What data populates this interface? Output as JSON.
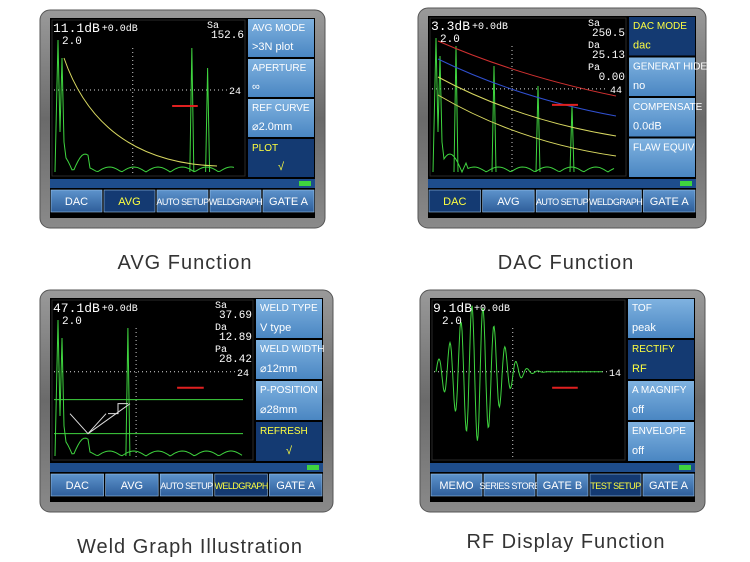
{
  "panels": [
    {
      "caption": "AVG Function",
      "gain": "11.1dB",
      "offset": "+0.0dB",
      "range": "2.0",
      "readouts": [
        {
          "label": "Sa",
          "value": "152.6"
        }
      ],
      "marker": "24",
      "menu": [
        {
          "label": "AVG MODE",
          "value": ">3N plot"
        },
        {
          "label": "APERTURE",
          "value": "∞"
        },
        {
          "label": "REF CURVE",
          "value": "⌀2.0mm"
        },
        {
          "label": "PLOT",
          "value": "√"
        }
      ],
      "selected_menu": 3,
      "buttons": [
        "DAC",
        "AVG",
        "AUTO SETUP",
        "WELDGRAPH",
        "GATE A"
      ],
      "active_button": 1
    },
    {
      "caption": "DAC Function",
      "gain": "3.3dB",
      "offset": "+0.0dB",
      "range": "2.0",
      "readouts": [
        {
          "label": "Sa",
          "value": "250.5"
        },
        {
          "label": "Da",
          "value": "25.13"
        },
        {
          "label": "Pa",
          "value": "0.00"
        }
      ],
      "marker": "44",
      "menu": [
        {
          "label": "DAC MODE",
          "value": "dac"
        },
        {
          "label": "GENERAT HIDE",
          "value": "no"
        },
        {
          "label": "COMPENSATE",
          "value": "0.0dB"
        },
        {
          "label": "FLAW EQUIV"
        }
      ],
      "selected_menu": 0,
      "buttons": [
        "DAC",
        "AVG",
        "AUTO SETUP",
        "WELDGRAPH",
        "GATE A"
      ],
      "active_button": 0
    },
    {
      "caption": "Weld Graph Illustration",
      "gain": "47.1dB",
      "offset": "+0.0dB",
      "range": "2.0",
      "readouts": [
        {
          "label": "Sa",
          "value": "37.69"
        },
        {
          "label": "Da",
          "value": "12.89"
        },
        {
          "label": "Pa",
          "value": "28.42"
        }
      ],
      "marker": "24",
      "menu": [
        {
          "label": "WELD TYPE",
          "value": "V type"
        },
        {
          "label": "WELD WIDTH",
          "value": "⌀12mm"
        },
        {
          "label": "P-POSITION",
          "value": "⌀28mm"
        },
        {
          "label": "REFRESH",
          "value": "√"
        }
      ],
      "selected_menu": 3,
      "buttons": [
        "DAC",
        "AVG",
        "AUTO SETUP",
        "WELDGRAPH",
        "GATE A"
      ],
      "active_button": 3
    },
    {
      "caption": "RF Display Function",
      "gain": "9.1dB",
      "offset": "+0.0dB",
      "range": "2.0",
      "readouts": [],
      "marker": "14",
      "menu": [
        {
          "label": "TOF",
          "value": "peak"
        },
        {
          "label": "RECTIFY",
          "value": "RF"
        },
        {
          "label": "A MAGNIFY",
          "value": "off"
        },
        {
          "label": "ENVELOPE",
          "value": "off"
        }
      ],
      "selected_menu": 1,
      "buttons": [
        "MEMO",
        "SERIES STORE",
        "GATE B",
        "TEST SETUP",
        "GATE A"
      ],
      "active_button": 3
    }
  ]
}
